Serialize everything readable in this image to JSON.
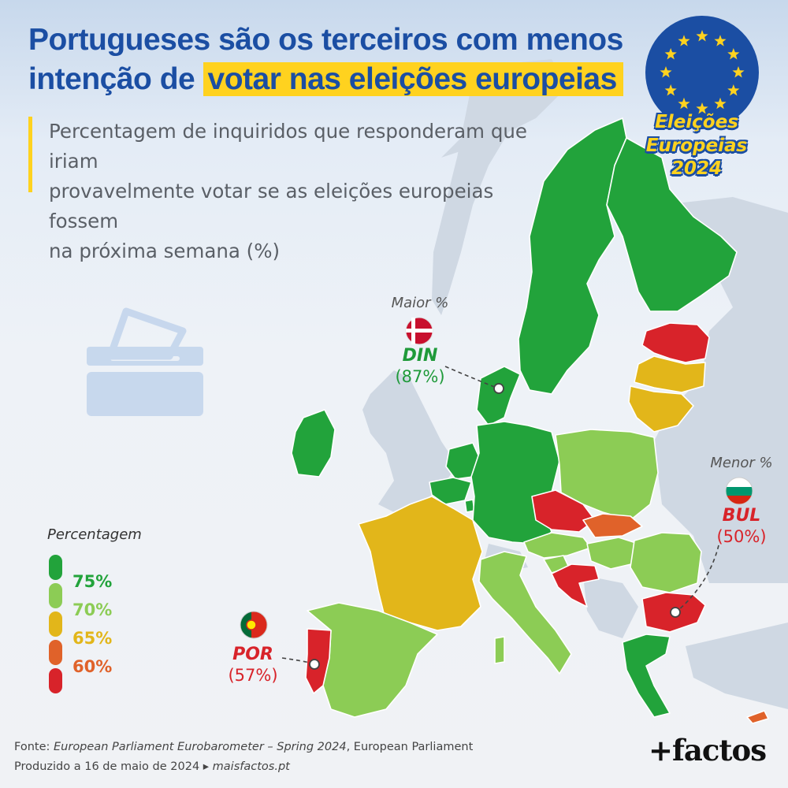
{
  "title": {
    "line1": "Portugueses são os terceiros com menos",
    "line2_plain": "intenção de ",
    "line2_highlight": "votar nas eleições europeias"
  },
  "subtitle": {
    "line1": "Percentagem de inquiridos que responderam que iriam",
    "line2": "provavelmente votar se as eleições europeias fossem",
    "line3": "na próxima semana (%)"
  },
  "badge": {
    "line1": "Eleições Europeias",
    "line2": "2024"
  },
  "callouts": {
    "max": {
      "kicker": "Maior %",
      "code": "DIN",
      "pct": "(87%)"
    },
    "min": {
      "kicker": "Menor %",
      "code": "BUL",
      "pct": "(50%)"
    },
    "por": {
      "code": "POR",
      "pct": "(57%)"
    }
  },
  "legend": {
    "title": "Percentagem",
    "items": [
      {
        "label": "75%",
        "color": "#22a33b"
      },
      {
        "label": "70%",
        "color": "#8ccc55"
      },
      {
        "label": "65%",
        "color": "#e2b61a"
      },
      {
        "label": "60%",
        "color": "#e0622a"
      },
      {
        "label": "",
        "color": "#d8232a"
      }
    ]
  },
  "countries": {
    "Suécia": "green",
    "Finlândia": "green",
    "Dinamarca": "green",
    "Alemanha": "green",
    "Países Baixos": "green",
    "Bélgica": "green",
    "Luxemburgo": "green",
    "Irlanda": "green",
    "Grécia": "green",
    "Polónia": "light-green",
    "Áustria": "light-green",
    "Itália": "light-green",
    "Espanha": "light-green",
    "Hungria": "light-green",
    "Roménia": "light-green",
    "Eslovénia": "light-green",
    "França": "yellow",
    "Letónia": "yellow",
    "Lituânia": "yellow",
    "Eslováquia": "orange",
    "Croácia": "orange",
    "Estónia": "red",
    "Chéquia": "red",
    "Bulgária": "red",
    "Portugal": "red",
    "Chipre": "orange"
  },
  "colors": {
    "green": "#22a33b",
    "light-green": "#8ccc55",
    "yellow": "#e2b61a",
    "orange": "#e0622a",
    "red": "#d8232a",
    "non_eu": "#cfd8e3",
    "sea": "#eef2f7",
    "title_blue": "#1b4ea3",
    "highlight": "#ffd21f"
  },
  "source": {
    "prefix": "Fonte: ",
    "italic": "European Parliament Eurobarometer – Spring 2024",
    "suffix": ", European Parliament",
    "line2_prefix": "Produzido a 16 de maio de 2024 ▸ ",
    "line2_link": "maisfactos.pt"
  },
  "brand": "+factos",
  "icons": [
    "eu-flag-icon",
    "ballot-box-icon",
    "denmark-flag-icon",
    "bulgaria-flag-icon",
    "portugal-flag-icon"
  ]
}
